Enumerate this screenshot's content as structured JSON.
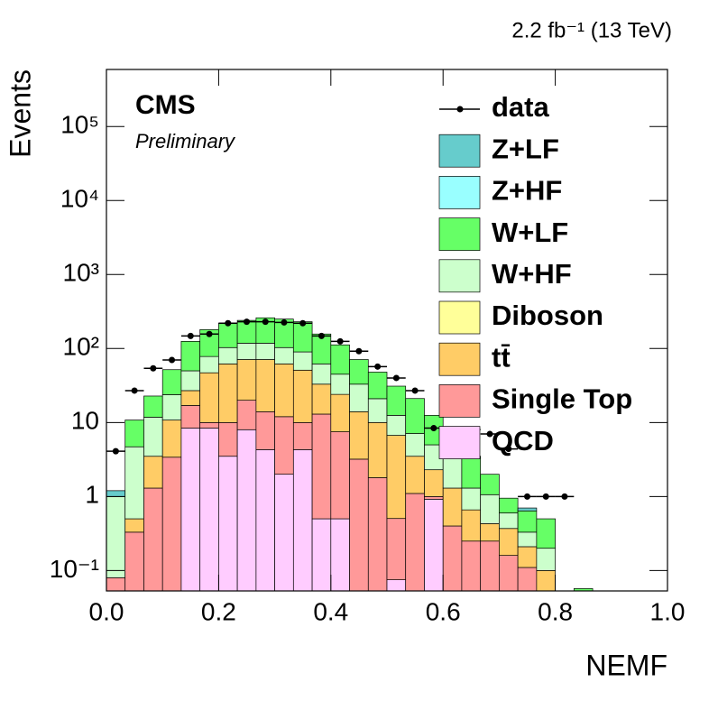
{
  "chart_data": {
    "type": "histogram",
    "lumi": "2.2 fb⁻¹ (13 TeV)",
    "label": "CMS",
    "sublabel": "Preliminary",
    "xlabel": "NEMF",
    "ylabel": "Events",
    "log_y": true,
    "grid": false,
    "legend_position": "upper right",
    "bins": [
      0,
      0.0333,
      0.0667,
      0.1,
      0.1333,
      0.1667,
      0.2,
      0.2333,
      0.2667,
      0.3,
      0.3333,
      0.3667,
      0.4,
      0.4333,
      0.4667,
      0.5,
      0.5333,
      0.5667,
      0.6,
      0.6333,
      0.6667,
      0.7,
      0.7333,
      0.7667,
      0.8,
      0.8333,
      0.8667,
      0.9,
      0.9333,
      0.9667,
      1
    ],
    "xlim": [
      0,
      1
    ],
    "ylim": [
      0.053,
      590000
    ],
    "xticks": [
      {
        "value": 0,
        "label": "0.0"
      },
      0.2,
      0.4,
      0.6,
      0.8,
      {
        "value": 1,
        "label": "1.0"
      }
    ],
    "yticks": [
      {
        "value": 0.1,
        "label": "10⁻¹"
      },
      1,
      10,
      {
        "value": 100,
        "label": "10²"
      },
      {
        "value": 1000,
        "label": "10³"
      },
      {
        "value": 10000,
        "label": "10⁴"
      },
      {
        "value": 100000,
        "label": "10⁵"
      }
    ],
    "series": [
      {
        "name": "QCD",
        "color": "#ffccff",
        "values": [
          0,
          0,
          0,
          0,
          8.4,
          8.4,
          3.5,
          8.0,
          4.3,
          2.0,
          4.3,
          0.5,
          0.5,
          0,
          0,
          0.075,
          0,
          0.92,
          0,
          0,
          0,
          0,
          0,
          0,
          0,
          0,
          0,
          0,
          0,
          0
        ]
      },
      {
        "name": "Single Top",
        "color": "#ff9999",
        "values": [
          0.08,
          0.33,
          1.3,
          3.4,
          8.6,
          1.6,
          6.5,
          12,
          9.7,
          10,
          5.7,
          12.5,
          7,
          3.2,
          1.8,
          0.43,
          1.1,
          0.08,
          0.4,
          0.25,
          0.25,
          0.16,
          0.11,
          0,
          0,
          0,
          0,
          0,
          0,
          0
        ]
      },
      {
        "name": "tt̄",
        "color": "#ffcc66",
        "values": [
          0,
          0.17,
          2.2,
          7.4,
          10,
          37,
          52,
          51,
          57,
          50,
          41,
          20,
          16.5,
          10.8,
          8.2,
          6.2,
          2.4,
          1.3,
          0.9,
          0.41,
          0.18,
          0.21,
          0.1,
          0.1,
          0,
          0,
          0,
          0,
          0,
          0
        ]
      },
      {
        "name": "Diboson",
        "color": "#ffff99",
        "values": [
          0,
          0,
          0,
          0,
          0,
          0,
          0,
          0,
          0,
          0,
          0,
          0,
          0,
          0,
          0,
          0,
          0,
          0,
          0,
          0,
          0,
          0,
          0,
          0,
          0,
          0,
          0,
          0,
          0,
          0
        ]
      },
      {
        "name": "W+HF",
        "color": "#ccffcc",
        "values": [
          0.92,
          4.2,
          8.3,
          13,
          23,
          31,
          41,
          47,
          47,
          41,
          39,
          29,
          21,
          19,
          11,
          5.8,
          3.6,
          2.7,
          2,
          0.64,
          0.63,
          0.23,
          0.12,
          0.1,
          0,
          0,
          0,
          0,
          0,
          0
        ]
      },
      {
        "name": "W+LF",
        "color": "#66ff66",
        "values": [
          0,
          6.1,
          11,
          28,
          75,
          102,
          117,
          122,
          142,
          147,
          140,
          95,
          67,
          38,
          27,
          18.5,
          14,
          7.5,
          4.2,
          2.2,
          0.94,
          0.35,
          0.31,
          0.3,
          0,
          0.057,
          0,
          0,
          0,
          0
        ]
      },
      {
        "name": "Z+HF",
        "color": "#99ffff",
        "values": [
          0,
          0,
          0,
          0,
          0,
          0,
          0,
          0,
          0,
          0,
          0,
          0,
          0,
          0,
          0,
          0,
          0,
          0,
          0,
          0,
          0,
          0,
          0,
          0,
          0,
          0,
          0,
          0,
          0,
          0
        ]
      },
      {
        "name": "Z+LF",
        "color": "#66cccc",
        "values": [
          0.2,
          0,
          0,
          0,
          0,
          0,
          0,
          0,
          0,
          0,
          0,
          0,
          0,
          0,
          0,
          0,
          0,
          0,
          0,
          0,
          0,
          0,
          0.06,
          0,
          0,
          0,
          0,
          0,
          0,
          0
        ]
      }
    ],
    "data": {
      "name": "data",
      "color": "#000000",
      "values": [
        4.1,
        27,
        54,
        70,
        148,
        157,
        220,
        230,
        230,
        225,
        220,
        148,
        125,
        92,
        57,
        40,
        27,
        8.4,
        8,
        8,
        7,
        4.4,
        1,
        1,
        1,
        null,
        null,
        null,
        null,
        null
      ]
    }
  }
}
